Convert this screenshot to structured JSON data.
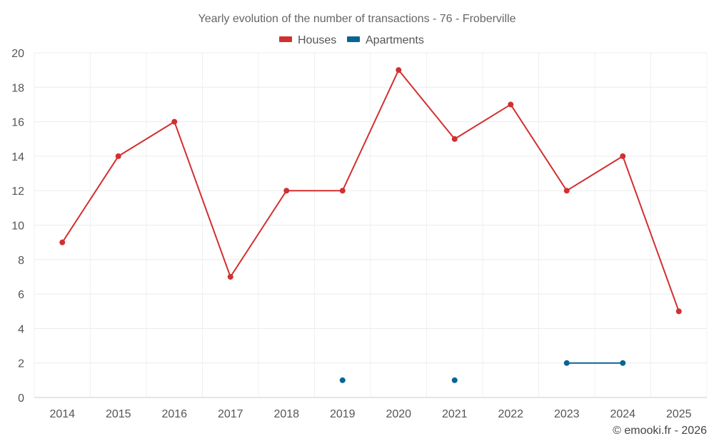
{
  "chart_data": {
    "type": "line",
    "title": "Yearly evolution of the number of transactions - 76 - Froberville",
    "categories": [
      "2014",
      "2015",
      "2016",
      "2017",
      "2018",
      "2019",
      "2020",
      "2021",
      "2022",
      "2023",
      "2024",
      "2025"
    ],
    "series": [
      {
        "name": "Houses",
        "color": "#d32f2f",
        "values": [
          9,
          14,
          16,
          7,
          12,
          12,
          19,
          15,
          17,
          12,
          14,
          5
        ]
      },
      {
        "name": "Apartments",
        "color": "#0a6496",
        "values": [
          null,
          null,
          null,
          null,
          null,
          1,
          null,
          1,
          null,
          2,
          2,
          null
        ]
      }
    ],
    "ylim": [
      0,
      20
    ],
    "yticks": [
      "0",
      "2",
      "4",
      "6",
      "8",
      "10",
      "12",
      "14",
      "16",
      "18",
      "20"
    ],
    "xlabel": "",
    "ylabel": "",
    "grid": true,
    "legend_position": "top-center"
  },
  "footer": {
    "credit": "© emooki.fr - 2026"
  }
}
